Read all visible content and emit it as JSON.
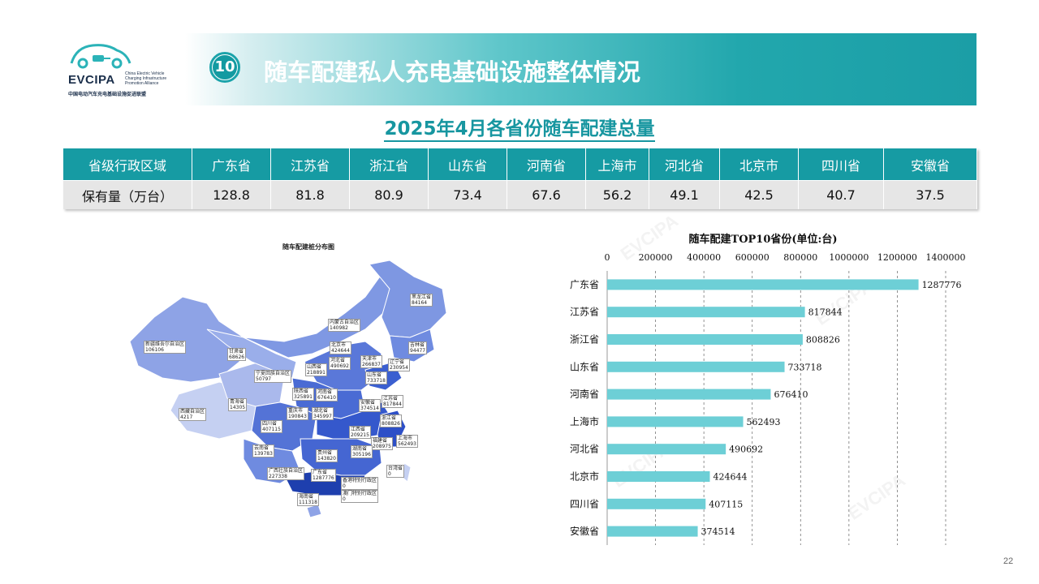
{
  "logo": {
    "name": "EVCIPA",
    "en": "China Electric Vehicle\nCharging Infrastructure\nPromotion Alliance",
    "cn": "中国电动汽车充电基础设施促进联盟"
  },
  "header": {
    "number": "10",
    "title": "随车配建私人充电基础设施整体情况"
  },
  "subtitle": "2025年4月各省份随车配建总量",
  "table": {
    "head_label": "省级行政区域",
    "row_label": "保有量（万台）",
    "provinces": [
      "广东省",
      "江苏省",
      "浙江省",
      "山东省",
      "河南省",
      "上海市",
      "河北省",
      "北京市",
      "四川省",
      "安徽省"
    ],
    "values": [
      "128.8",
      "81.8",
      "80.9",
      "73.4",
      "67.6",
      "56.2",
      "49.1",
      "42.5",
      "40.7",
      "37.5"
    ]
  },
  "map": {
    "title": "随车配建桩分布图",
    "labels": [
      {
        "name": "黑龙江省",
        "value": "84164"
      },
      {
        "name": "吉林省",
        "value": "94477"
      },
      {
        "name": "辽宁省",
        "value": "230954"
      },
      {
        "name": "内蒙古自治区",
        "value": "140982"
      },
      {
        "name": "新疆维吾尔自治区",
        "value": "106106"
      },
      {
        "name": "甘肃省",
        "value": "68626"
      },
      {
        "name": "北京市",
        "value": "424644"
      },
      {
        "name": "天津市",
        "value": "266837"
      },
      {
        "name": "河北省",
        "value": "490692"
      },
      {
        "name": "山西省",
        "value": "218891"
      },
      {
        "name": "山东省",
        "value": "733718"
      },
      {
        "name": "宁夏回族自治区",
        "value": "50797"
      },
      {
        "name": "青海省",
        "value": "14305"
      },
      {
        "name": "陕西省",
        "value": "325891"
      },
      {
        "name": "河南省",
        "value": "676410"
      },
      {
        "name": "江苏省",
        "value": "817844"
      },
      {
        "name": "安徽省",
        "value": "374514"
      },
      {
        "name": "西藏自治区",
        "value": "4217"
      },
      {
        "name": "四川省",
        "value": "407115"
      },
      {
        "name": "重庆市",
        "value": "190843"
      },
      {
        "name": "湖北省",
        "value": "345997"
      },
      {
        "name": "浙江省",
        "value": "808826"
      },
      {
        "name": "上海市",
        "value": "562493"
      },
      {
        "name": "江西省",
        "value": "209215"
      },
      {
        "name": "福建省",
        "value": "208975"
      },
      {
        "name": "云南省",
        "value": "139783"
      },
      {
        "name": "贵州省",
        "value": "143820"
      },
      {
        "name": "湖南省",
        "value": "305196"
      },
      {
        "name": "广西壮族自治区",
        "value": "227338"
      },
      {
        "name": "广东省",
        "value": "1287776"
      },
      {
        "name": "台湾省",
        "value": "0"
      },
      {
        "name": "香港特别行政区",
        "value": "0"
      },
      {
        "name": "澳门特别行政区",
        "value": "0"
      },
      {
        "name": "海南省",
        "value": "111318"
      }
    ]
  },
  "chart_data": {
    "type": "bar",
    "title": "随车配建TOP10省份(单位:台)",
    "categories": [
      "广东省",
      "江苏省",
      "浙江省",
      "山东省",
      "河南省",
      "上海市",
      "河北省",
      "北京市",
      "四川省",
      "安徽省"
    ],
    "values": [
      1287776,
      817844,
      808826,
      733718,
      676410,
      562493,
      490692,
      424644,
      407115,
      374514
    ],
    "xlim": [
      0,
      1400000
    ],
    "ticks": [
      "0",
      "200000",
      "400000",
      "600000",
      "800000",
      "1000000",
      "1200000",
      "1400000"
    ],
    "grid": true,
    "bar_color": "#6dcfd6"
  },
  "page_number": "22"
}
